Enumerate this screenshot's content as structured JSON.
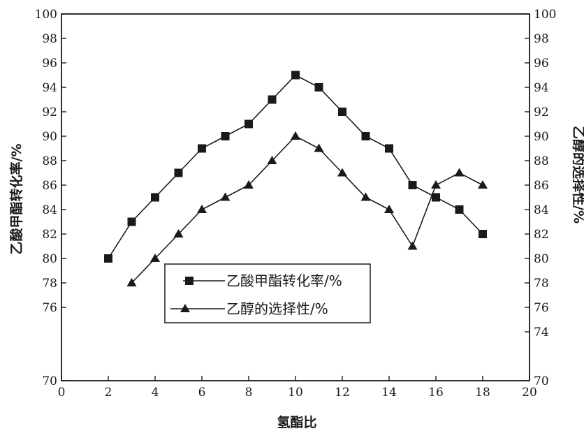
{
  "chart_data": {
    "type": "line",
    "xlabel": "氢酯比",
    "ylabel_left": "乙酸甲酯转化率/%",
    "ylabel_right": "乙醇的选择性/%",
    "xlim": [
      0,
      20
    ],
    "ylim": [
      70,
      100
    ],
    "x_ticks": [
      "0",
      "2",
      "4",
      "6",
      "8",
      "10",
      "12",
      "14",
      "16",
      "18",
      "20"
    ],
    "y_ticks_left": [
      "70",
      "76",
      "78",
      "80",
      "82",
      "84",
      "86",
      "88",
      "90",
      "92",
      "94",
      "96",
      "98",
      "100"
    ],
    "y_ticks_right": [
      "70",
      "74",
      "76",
      "78",
      "80",
      "82",
      "84",
      "86",
      "88",
      "90",
      "92",
      "94",
      "96",
      "98",
      "100"
    ],
    "grid": false,
    "legend_position": "lower-center",
    "series": [
      {
        "name": "乙酸甲酯转化率/%",
        "marker": "square",
        "color": "#1a1a1a",
        "x": [
          2,
          3,
          4,
          5,
          6,
          7,
          8,
          9,
          10,
          11,
          12,
          13,
          14,
          15,
          16,
          17,
          18
        ],
        "y": [
          80,
          83,
          85,
          87,
          89,
          90,
          91,
          93,
          95,
          94,
          92,
          90,
          89,
          86,
          85,
          84,
          82
        ]
      },
      {
        "name": "乙醇的选择性/%",
        "marker": "triangle",
        "color": "#1a1a1a",
        "x": [
          3,
          4,
          5,
          6,
          7,
          8,
          9,
          10,
          11,
          12,
          13,
          14,
          15,
          16,
          17,
          18
        ],
        "y": [
          78,
          80,
          82,
          84,
          85,
          86,
          88,
          90,
          89,
          87,
          85,
          84,
          81,
          86,
          87,
          86
        ]
      }
    ]
  }
}
